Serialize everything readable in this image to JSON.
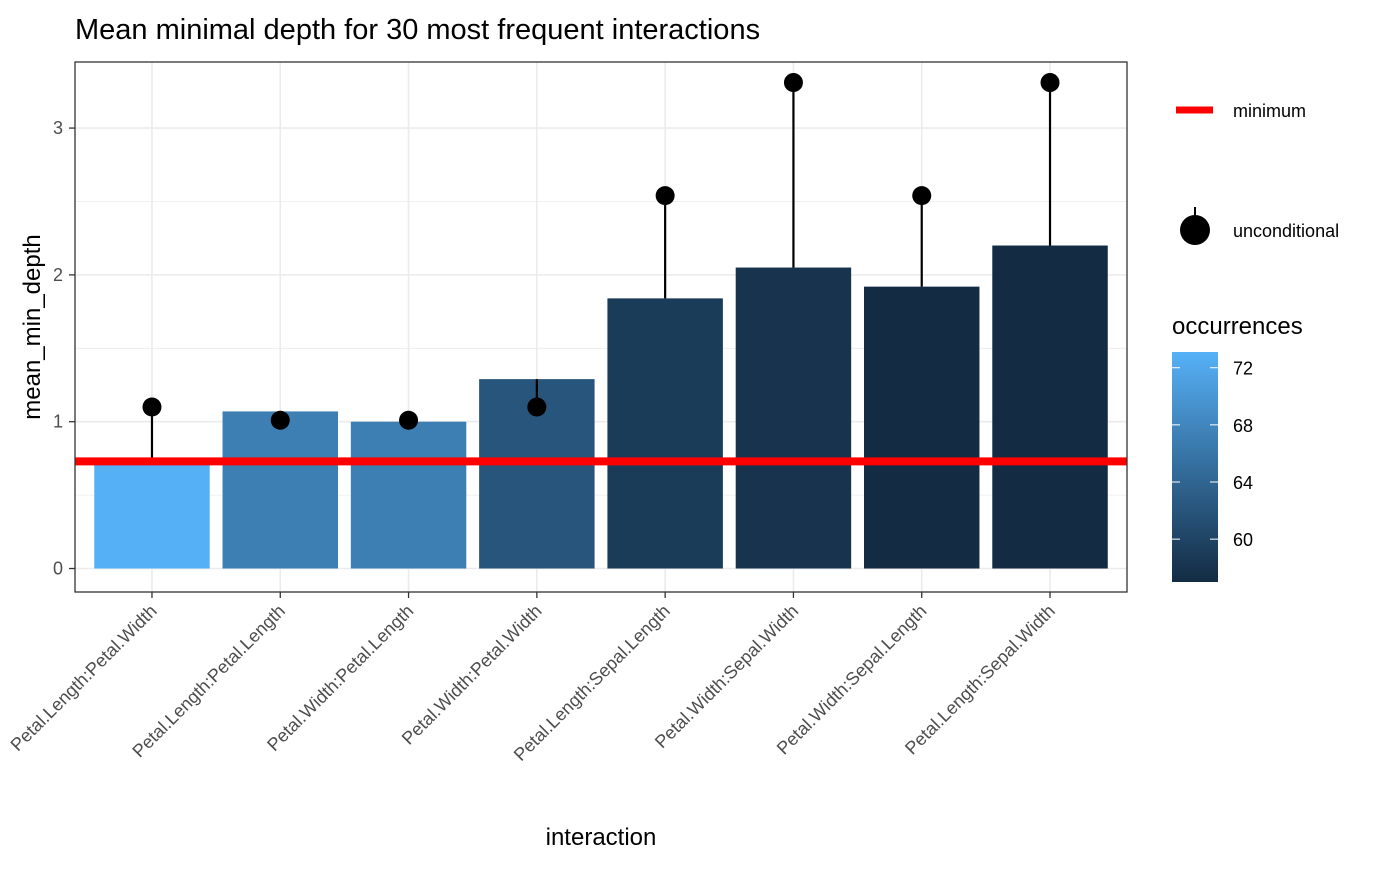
{
  "chart_data": {
    "type": "bar",
    "title": "Mean minimal depth for 30 most frequent interactions",
    "xlabel": "interaction",
    "ylabel": "mean_min_depth",
    "ylim": [
      -0.16,
      3.45
    ],
    "yticks": [
      0,
      1,
      2,
      3
    ],
    "grid": true,
    "categories": [
      "Petal.Length:Petal.Width",
      "Petal.Length:Petal.Length",
      "Petal.Width:Petal.Length",
      "Petal.Width:Petal.Width",
      "Petal.Length:Sepal.Length",
      "Petal.Width:Sepal.Width",
      "Petal.Width:Sepal.Length",
      "Petal.Length:Sepal.Width"
    ],
    "series": [
      {
        "name": "mean_min_depth",
        "kind": "bar",
        "values": [
          0.72,
          1.07,
          1.0,
          1.29,
          1.84,
          2.05,
          1.92,
          2.2
        ]
      },
      {
        "name": "unconditional",
        "kind": "point",
        "values": [
          1.1,
          1.01,
          1.01,
          1.1,
          2.54,
          3.31,
          2.54,
          3.31
        ]
      },
      {
        "name": "occurrences",
        "kind": "fill",
        "values": [
          73,
          67,
          67,
          62,
          59,
          58,
          57,
          57
        ]
      }
    ],
    "minimum_line": {
      "name": "minimum",
      "value": 0.73,
      "color": "#ff0000"
    },
    "legend": {
      "placement": "right",
      "items": [
        {
          "label": "minimum",
          "symbol": "line",
          "color": "#ff0000"
        },
        {
          "label": "unconditional",
          "symbol": "point",
          "color": "#000000"
        }
      ],
      "colorbar": {
        "title": "occurrences",
        "range": [
          57,
          73.1
        ],
        "ticks": [
          72,
          68,
          64,
          60
        ],
        "low_color": "#132b43",
        "high_color": "#56b1f7"
      }
    }
  }
}
